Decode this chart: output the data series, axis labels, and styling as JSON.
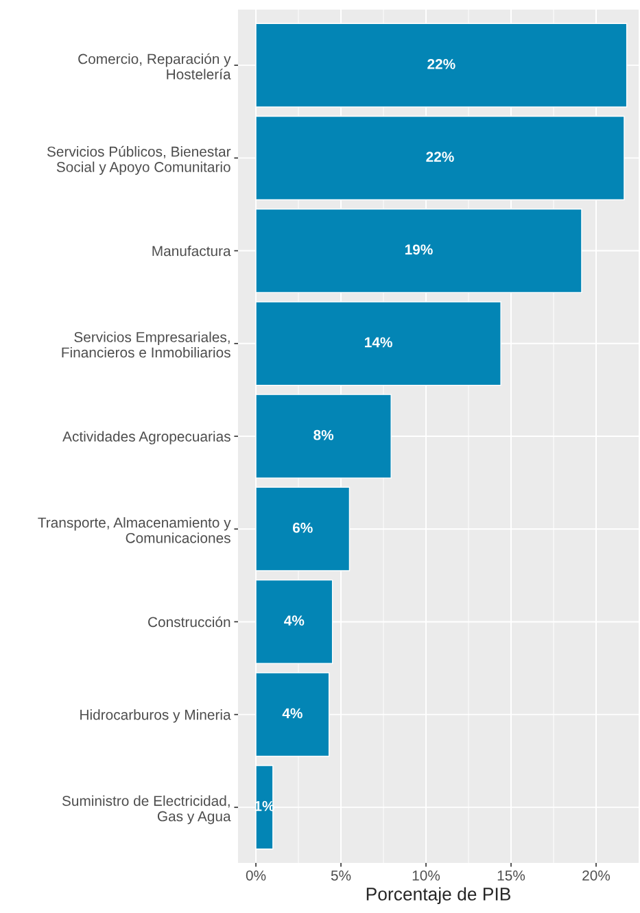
{
  "chart_data": {
    "type": "bar",
    "orientation": "horizontal",
    "xlabel": "Porcentaje de PIB",
    "categories": [
      "Comercio, Reparación y\nHostelería",
      "Servicios Públicos, Bienestar\nSocial y Apoyo Comunitario",
      "Manufactura",
      "Servicios Empresariales,\nFinancieros e Inmobiliarios",
      "Actividades Agropecuarias",
      "Transporte, Almacenamiento y\nComunicaciones",
      "Construcción",
      "Hidrocarburos y Mineria",
      "Suministro de Electricidad,\nGas y Agua"
    ],
    "values": [
      21.8,
      21.65,
      19.15,
      14.4,
      7.95,
      5.5,
      4.5,
      4.3,
      1.0
    ],
    "value_labels": [
      "22%",
      "22%",
      "19%",
      "14%",
      "8%",
      "6%",
      "4%",
      "4%",
      "1%"
    ],
    "color": "#0385b5",
    "xlim": [
      -1.05,
      22.5
    ],
    "xticks": [
      {
        "value": 0,
        "label": "0%"
      },
      {
        "value": 5,
        "label": "5%"
      },
      {
        "value": 10,
        "label": "10%"
      },
      {
        "value": 15,
        "label": "15%"
      },
      {
        "value": 20,
        "label": "20%"
      }
    ],
    "grid": true,
    "legend": false
  }
}
